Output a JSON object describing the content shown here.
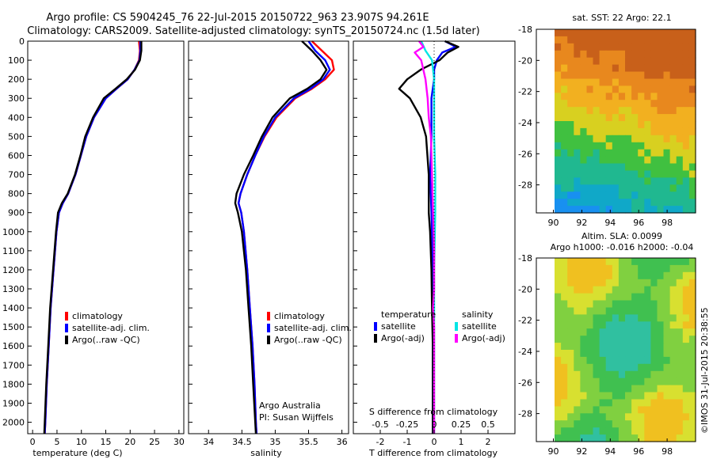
{
  "header": {
    "line1": "Argo profile: CS 5904245_76 22-Jul-2015 20150722_963 23.907S 94.261E",
    "line2": "Climatology: CARS2009. Satellite-adjusted climatology: synTS_20150724.nc (1.5d later)"
  },
  "side_stamp": "©IMOS 31-Jul-2015 20:38:55",
  "colors": {
    "clim": "#ff0000",
    "sat": "#0000ff",
    "argo": "#000000",
    "sat_s": "#00e5e5",
    "argo_s": "#ff00ff"
  },
  "chart_data": [
    {
      "type": "line",
      "name": "temperature-profile",
      "xlabel": "temperature (deg C)",
      "ylabel": "",
      "xlim": [
        -1,
        31
      ],
      "ylim": [
        0,
        2060
      ],
      "x_ticks": [
        "0",
        "5",
        "10",
        "15",
        "20",
        "25",
        "30"
      ],
      "y_ticks": [
        "0",
        "100",
        "200",
        "300",
        "400",
        "500",
        "600",
        "700",
        "800",
        "900",
        "1000",
        "1100",
        "1200",
        "1300",
        "1400",
        "1500",
        "1600",
        "1700",
        "1800",
        "1900",
        "2000"
      ],
      "legend": [
        "climatology",
        "satellite-adj. clim.",
        "Argo(..raw -QC)"
      ],
      "series": [
        {
          "name": "climatology",
          "depth": [
            0,
            50,
            100,
            150,
            200,
            250,
            300,
            400,
            500,
            600,
            700,
            800,
            850,
            900,
            1000,
            1200,
            1400,
            1600,
            1800,
            2000,
            2060
          ],
          "values": [
            21.8,
            22.0,
            21.8,
            20.9,
            19.5,
            17.2,
            15.0,
            12.6,
            11.0,
            9.9,
            8.8,
            7.3,
            6.2,
            5.4,
            4.9,
            4.3,
            3.7,
            3.3,
            2.9,
            2.6,
            2.5
          ]
        },
        {
          "name": "satellite-adj. clim.",
          "depth": [
            0,
            50,
            100,
            150,
            200,
            250,
            300,
            400,
            500,
            600,
            700,
            800,
            850,
            900,
            1000,
            1200,
            1400,
            1600,
            1800,
            2000,
            2060
          ],
          "values": [
            22.1,
            22.1,
            21.9,
            20.9,
            19.5,
            17.2,
            15.0,
            12.6,
            11.0,
            9.9,
            8.8,
            7.3,
            6.2,
            5.4,
            4.9,
            4.3,
            3.7,
            3.3,
            2.9,
            2.6,
            2.5
          ]
        },
        {
          "name": "Argo(..raw -QC)",
          "depth": [
            0,
            50,
            100,
            150,
            200,
            250,
            300,
            400,
            500,
            600,
            700,
            800,
            850,
            900,
            1000,
            1200,
            1400,
            1600,
            1800,
            2000,
            2060
          ],
          "values": [
            22.3,
            22.3,
            22.0,
            21.0,
            19.3,
            17.0,
            14.6,
            12.4,
            10.8,
            9.8,
            8.7,
            7.2,
            6.0,
            5.2,
            4.8,
            4.2,
            3.6,
            3.2,
            2.8,
            2.5,
            2.4
          ]
        }
      ]
    },
    {
      "type": "line",
      "name": "salinity-profile",
      "xlabel": "salinity",
      "ylabel": "",
      "xlim": [
        33.7,
        36.1
      ],
      "ylim": [
        0,
        2060
      ],
      "x_ticks": [
        "34",
        "34.5",
        "35",
        "35.5",
        "36"
      ],
      "legend": [
        "climatology",
        "satellite-adj. clim.",
        "Argo(..raw -QC)"
      ],
      "annotation": [
        "Argo Australia",
        "PI: Susan Wijffels"
      ],
      "series": [
        {
          "name": "climatology",
          "depth": [
            0,
            50,
            100,
            150,
            200,
            250,
            300,
            400,
            500,
            600,
            700,
            800,
            850,
            900,
            1000,
            1200,
            1400,
            1600,
            1800,
            2000,
            2060
          ],
          "values": [
            35.55,
            35.7,
            35.85,
            35.88,
            35.75,
            35.55,
            35.3,
            35.02,
            34.84,
            34.7,
            34.58,
            34.48,
            34.45,
            34.49,
            34.53,
            34.58,
            34.62,
            34.66,
            34.69,
            34.71,
            34.72
          ]
        },
        {
          "name": "satellite-adj. clim.",
          "depth": [
            0,
            50,
            100,
            150,
            200,
            250,
            300,
            400,
            500,
            600,
            700,
            800,
            850,
            900,
            1000,
            1200,
            1400,
            1600,
            1800,
            2000,
            2060
          ],
          "values": [
            35.5,
            35.6,
            35.75,
            35.82,
            35.72,
            35.53,
            35.28,
            35.0,
            34.83,
            34.7,
            34.58,
            34.48,
            34.45,
            34.49,
            34.53,
            34.58,
            34.62,
            34.66,
            34.69,
            34.71,
            34.72
          ]
        },
        {
          "name": "Argo(..raw -QC)",
          "depth": [
            0,
            50,
            100,
            150,
            200,
            250,
            300,
            400,
            500,
            600,
            700,
            800,
            850,
            900,
            1000,
            1200,
            1400,
            1600,
            1800,
            2000,
            2060
          ],
          "values": [
            35.4,
            35.55,
            35.68,
            35.77,
            35.68,
            35.48,
            35.22,
            34.96,
            34.8,
            34.67,
            34.53,
            34.42,
            34.4,
            34.44,
            34.5,
            34.56,
            34.6,
            34.64,
            34.67,
            34.7,
            34.71
          ]
        }
      ]
    },
    {
      "type": "line",
      "name": "difference-profile",
      "xlabel": "T difference from climatology",
      "xlabel_top": "S difference from climatology",
      "xlim": [
        -3,
        3
      ],
      "ylim": [
        0,
        2060
      ],
      "x_ticks": [
        "-2",
        "-1",
        "0",
        "1",
        "2"
      ],
      "x_ticks_top": [
        "-0.5",
        "-0.25",
        "0",
        "0.25",
        "0.5"
      ],
      "legend_temperature": {
        "title": "temperature",
        "items": [
          "satellite",
          "Argo(-adj)"
        ]
      },
      "legend_salinity": {
        "title": "salinity",
        "items": [
          "satellite",
          "Argo(-adj)"
        ]
      },
      "series": [
        {
          "name": "temperature satellite",
          "depth": [
            0,
            30,
            60,
            100,
            150,
            200,
            300,
            500,
            700,
            900,
            1200,
            1600,
            2000,
            2060
          ],
          "values": [
            0.4,
            0.8,
            0.3,
            0.1,
            0.0,
            0.0,
            -0.1,
            -0.1,
            -0.15,
            -0.1,
            -0.05,
            -0.05,
            -0.05,
            -0.05
          ]
        },
        {
          "name": "temperature Argo(-adj)",
          "depth": [
            0,
            30,
            60,
            100,
            150,
            200,
            250,
            300,
            400,
            500,
            700,
            900,
            1000,
            1200,
            1400,
            1600,
            1800,
            2000,
            2060
          ],
          "values": [
            0.4,
            0.9,
            0.5,
            0.2,
            -0.5,
            -1.0,
            -1.3,
            -0.9,
            -0.5,
            -0.3,
            -0.2,
            -0.2,
            -0.15,
            -0.1,
            -0.08,
            -0.05,
            -0.05,
            -0.05,
            -0.05
          ]
        },
        {
          "name": "salinity satellite",
          "depth": [
            0,
            50,
            100,
            200,
            300,
            500,
            700,
            900,
            1200,
            1400,
            1600,
            2000,
            2060
          ],
          "values": [
            -0.12,
            -0.08,
            -0.02,
            0.0,
            0.0,
            0.0,
            0.01,
            0.01,
            0.0,
            0.0,
            0.0,
            0.0,
            0.0
          ]
        },
        {
          "name": "salinity Argo(-adj)",
          "depth": [
            0,
            30,
            60,
            100,
            200,
            300,
            400,
            500,
            700,
            900,
            1100,
            1300,
            1400,
            1500,
            2000,
            2060
          ],
          "values": [
            -0.14,
            -0.1,
            -0.18,
            -0.12,
            -0.08,
            -0.06,
            -0.05,
            -0.03,
            -0.02,
            -0.01,
            0.0,
            0.0,
            -0.01,
            0.0,
            0.0,
            0.0
          ]
        }
      ]
    },
    {
      "type": "heatmap",
      "name": "sst-map",
      "title": "sat. SST: 22  Argo: 22.1",
      "xlim": [
        88.8,
        100
      ],
      "ylim": [
        -29.8,
        -18
      ],
      "x_ticks": [
        "90",
        "92",
        "94",
        "96",
        "98"
      ],
      "y_ticks": [
        "-18",
        "-20",
        "-22",
        "-24",
        "-26",
        "-28"
      ]
    },
    {
      "type": "heatmap",
      "name": "sla-map",
      "title": "Altim. SLA: 0.0099",
      "subtitle": "Argo h1000: -0.016  h2000: -0.04",
      "xlim": [
        88.8,
        100
      ],
      "ylim": [
        -29.8,
        -18
      ],
      "x_ticks": [
        "90",
        "92",
        "94",
        "96",
        "98"
      ],
      "y_ticks": [
        "-18",
        "-20",
        "-22",
        "-24",
        "-26",
        "-28"
      ]
    }
  ]
}
